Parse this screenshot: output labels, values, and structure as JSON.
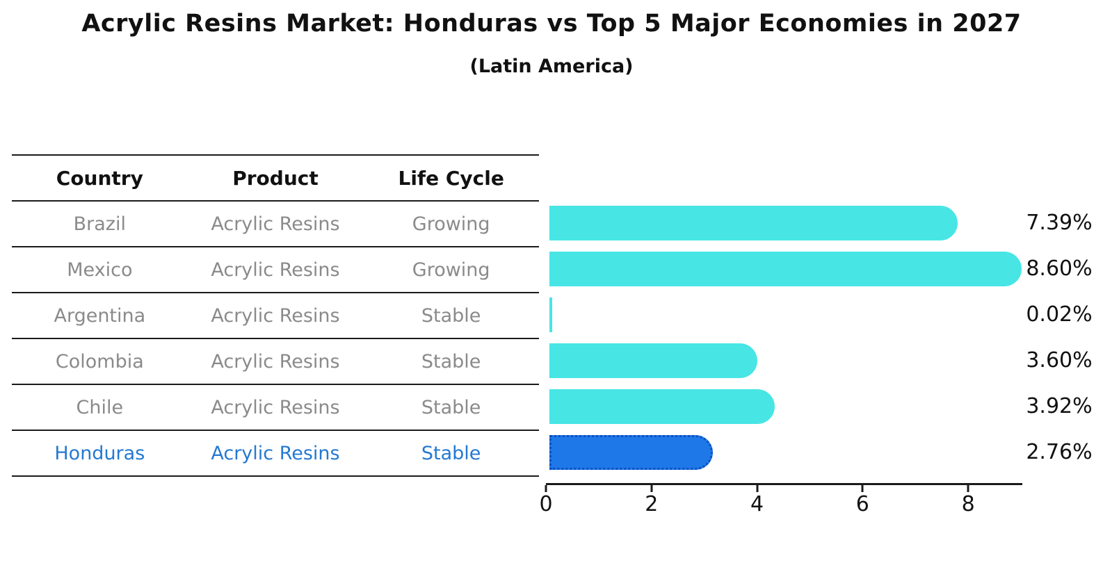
{
  "title": "Acrylic Resins Market: Honduras vs Top 5 Major Economies in 2027",
  "subtitle": "(Latin America)",
  "table": {
    "headers": [
      "Country",
      "Product",
      "Life Cycle"
    ],
    "rows": [
      {
        "country": "Brazil",
        "product": "Acrylic Resins",
        "life_cycle": "Growing",
        "highlight": false
      },
      {
        "country": "Mexico",
        "product": "Acrylic Resins",
        "life_cycle": "Growing",
        "highlight": false
      },
      {
        "country": "Argentina",
        "product": "Acrylic Resins",
        "life_cycle": "Stable",
        "highlight": false
      },
      {
        "country": "Colombia",
        "product": "Acrylic Resins",
        "life_cycle": "Stable",
        "highlight": false
      },
      {
        "country": "Chile",
        "product": "Acrylic Resins",
        "life_cycle": "Stable",
        "highlight": false
      },
      {
        "country": "Honduras",
        "product": "Acrylic Resins",
        "life_cycle": "Stable",
        "highlight": true
      }
    ]
  },
  "chart_data": {
    "type": "bar",
    "orientation": "horizontal",
    "categories": [
      "Brazil",
      "Mexico",
      "Argentina",
      "Colombia",
      "Chile",
      "Honduras"
    ],
    "values": [
      7.39,
      8.6,
      0.02,
      3.6,
      3.92,
      2.76
    ],
    "value_labels": [
      "7.39%",
      "8.60%",
      "0.02%",
      "3.60%",
      "3.92%",
      "2.76%"
    ],
    "highlight_index": 5,
    "xlabel": "",
    "ylabel": "",
    "xlim": [
      0,
      9
    ],
    "xticks": [
      0,
      2,
      4,
      6,
      8
    ],
    "grid": false,
    "legend": "none",
    "bar_color": "#48E5E5",
    "highlight_bar_color": "#1E78E8",
    "highlight_text_color": "#2479d2",
    "row_text_color": "#8a8a8a",
    "axis_color": "#1a1a1a"
  }
}
